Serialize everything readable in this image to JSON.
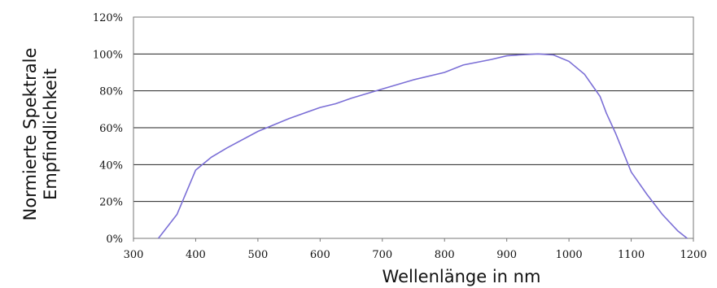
{
  "chart_data": {
    "type": "line",
    "xlabel": "Wellenlänge in nm",
    "ylabel_lines": [
      "Normierte Spektrale",
      "Empfindlichkeit"
    ],
    "xlim": [
      300,
      1200
    ],
    "ylim": [
      0,
      120
    ],
    "x_ticks": [
      300,
      400,
      500,
      600,
      700,
      800,
      900,
      1000,
      1100,
      1200
    ],
    "x_tick_labels": [
      "300",
      "400",
      "500",
      "600",
      "700",
      "800",
      "900",
      "1000",
      "1100",
      "1200"
    ],
    "y_ticks": [
      0,
      20,
      40,
      60,
      80,
      100,
      120
    ],
    "y_tick_labels": [
      "0%",
      "20%",
      "40%",
      "60%",
      "80%",
      "100%",
      "120%"
    ],
    "grid": "horizontal",
    "line_color": "#7b6fd6",
    "series": [
      {
        "x": [
          340,
          370,
          400,
          425,
          450,
          500,
          550,
          600,
          625,
          650,
          700,
          750,
          800,
          830,
          875,
          900,
          920,
          950,
          975,
          1000,
          1025,
          1050,
          1060,
          1075,
          1100,
          1125,
          1150,
          1175,
          1190
        ],
        "y": [
          0,
          13,
          37,
          44,
          49,
          58,
          65,
          71,
          73,
          76,
          81,
          86,
          90,
          94,
          97,
          99,
          99.5,
          100,
          99.5,
          96,
          89,
          77,
          68,
          57,
          36,
          24,
          13,
          4,
          0
        ]
      }
    ]
  }
}
